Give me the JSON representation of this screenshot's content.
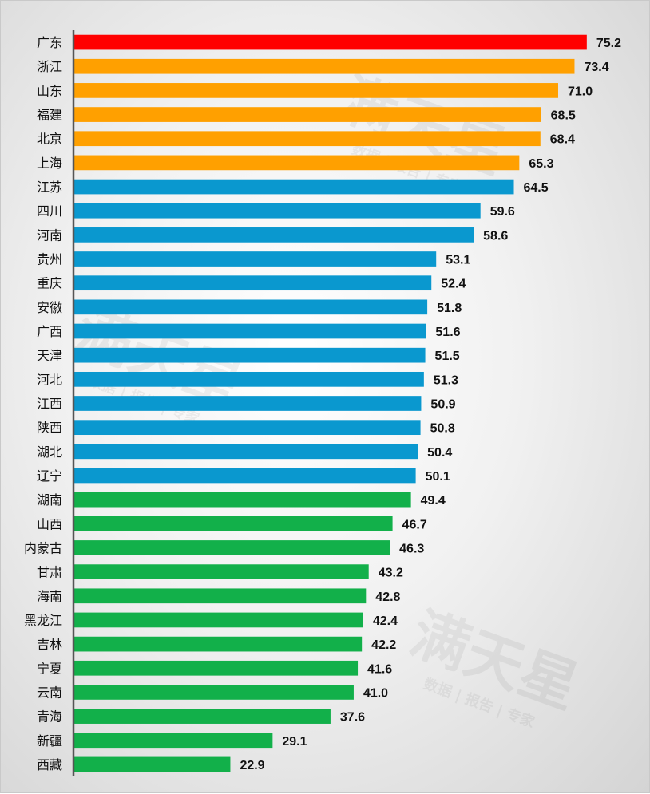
{
  "chart_data": {
    "type": "bar",
    "orientation": "horizontal",
    "categories": [
      "广东",
      "浙江",
      "山东",
      "福建",
      "北京",
      "上海",
      "江苏",
      "四川",
      "河南",
      "贵州",
      "重庆",
      "安徽",
      "广西",
      "天津",
      "河北",
      "江西",
      "陕西",
      "湖北",
      "辽宁",
      "湖南",
      "山西",
      "内蒙古",
      "甘肃",
      "海南",
      "黑龙江",
      "吉林",
      "宁夏",
      "云南",
      "青海",
      "新疆",
      "西藏"
    ],
    "values": [
      75.2,
      73.4,
      71.0,
      68.5,
      68.4,
      65.3,
      64.5,
      59.6,
      58.6,
      53.1,
      52.4,
      51.8,
      51.6,
      51.5,
      51.3,
      50.9,
      50.8,
      50.4,
      50.1,
      49.4,
      46.7,
      46.3,
      43.2,
      42.8,
      42.4,
      42.2,
      41.6,
      41.0,
      37.6,
      29.1,
      22.9
    ],
    "value_labels": [
      "75.2",
      "73.4",
      "71.0",
      "68.5",
      "68.4",
      "65.3",
      "64.5",
      "59.6",
      "58.6",
      "53.1",
      "52.4",
      "51.8",
      "51.6",
      "51.5",
      "51.3",
      "50.9",
      "50.8",
      "50.4",
      "50.1",
      "49.4",
      "46.7",
      "46.3",
      "43.2",
      "42.8",
      "42.4",
      "42.2",
      "41.6",
      "41.0",
      "37.6",
      "29.1",
      "22.9"
    ],
    "bar_colors": [
      "#ff0000",
      "#ffa000",
      "#ffa000",
      "#ffa000",
      "#ffa000",
      "#ffa000",
      "#0a98cf",
      "#0a98cf",
      "#0a98cf",
      "#0a98cf",
      "#0a98cf",
      "#0a98cf",
      "#0a98cf",
      "#0a98cf",
      "#0a98cf",
      "#0a98cf",
      "#0a98cf",
      "#0a98cf",
      "#0a98cf",
      "#12b04a",
      "#12b04a",
      "#12b04a",
      "#12b04a",
      "#12b04a",
      "#12b04a",
      "#12b04a",
      "#12b04a",
      "#12b04a",
      "#12b04a",
      "#12b04a",
      "#12b04a"
    ],
    "xlim": [
      0,
      80
    ],
    "grid": false,
    "legend": "none",
    "title": "",
    "xlabel": "",
    "ylabel": ""
  },
  "colors": {
    "axis": "#555555",
    "text": "#111111"
  },
  "watermark": {
    "main": "满天星",
    "sub": "数据 | 报告 | 专家"
  }
}
